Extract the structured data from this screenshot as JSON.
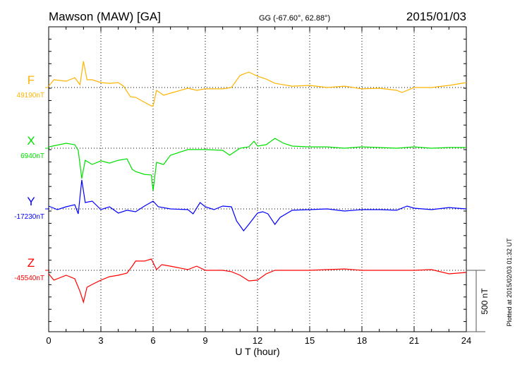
{
  "chart_data": {
    "type": "line",
    "title": "Mawson (MAW)  [GA]",
    "subtitle": "GG (-67.60°,  62.88°)",
    "date": "2015/01/03",
    "xlabel": "U T (hour)",
    "xlim": [
      0,
      24
    ],
    "x_ticks": [
      "0",
      "3",
      "6",
      "9",
      "12",
      "15",
      "18",
      "21",
      "24"
    ],
    "scale_bar_label": "500 nT",
    "scale_bar_nT": 500,
    "footer": "Plotted at 2015/02/03 01:32 UT",
    "grid": true,
    "series": [
      {
        "name": "F",
        "baseline_label": "49190nT",
        "color": "#ffb400",
        "x": [
          0,
          0.3,
          1,
          1.5,
          1.8,
          2.0,
          2.2,
          2.5,
          3,
          3.5,
          4,
          4.3,
          4.7,
          5,
          5.5,
          5.9,
          6.0,
          6.2,
          6.6,
          7,
          8,
          8.5,
          9,
          10,
          10.5,
          11,
          11.5,
          12,
          12.5,
          13,
          14,
          15,
          16,
          17,
          18,
          19,
          20,
          20.3,
          21,
          22,
          23,
          24
        ],
        "y": [
          11,
          63,
          52,
          80,
          23,
          213,
          63,
          63,
          40,
          34,
          40,
          11,
          -75,
          -80,
          -120,
          -150,
          -150,
          -23,
          -63,
          -46,
          -6,
          -23,
          -11,
          -11,
          0,
          98,
          126,
          92,
          69,
          34,
          11,
          17,
          0,
          11,
          -11,
          -6,
          -23,
          -40,
          0,
          0,
          17,
          40
        ]
      },
      {
        "name": "X",
        "baseline_label": "6940nT",
        "color": "#00e000",
        "x": [
          0,
          1,
          1.5,
          1.7,
          1.9,
          2.1,
          2.5,
          3,
          3.5,
          4,
          4.5,
          4.8,
          5,
          5.5,
          5.9,
          6.0,
          6.2,
          6.6,
          7,
          8,
          9,
          10,
          10.4,
          11,
          11.5,
          11.8,
          12,
          12.5,
          13,
          13.5,
          14,
          15,
          16,
          17,
          18,
          19,
          20,
          21,
          22,
          23,
          24
        ],
        "y": [
          11,
          40,
          29,
          -17,
          -247,
          -98,
          -132,
          -103,
          -121,
          -98,
          -86,
          -172,
          -190,
          -213,
          -218,
          -345,
          -115,
          -132,
          -57,
          -11,
          -11,
          -17,
          -57,
          0,
          11,
          57,
          17,
          29,
          80,
          40,
          17,
          11,
          11,
          0,
          11,
          6,
          0,
          11,
          0,
          6,
          6
        ]
      },
      {
        "name": "Y",
        "baseline_label": "-17230nT",
        "color": "#0000ff",
        "x": [
          0,
          0.5,
          1,
          1.5,
          1.7,
          1.9,
          2.1,
          2.5,
          3,
          3.5,
          4,
          4.5,
          5,
          5.5,
          6,
          6.3,
          7,
          8,
          8.3,
          8.7,
          9,
          9.5,
          10,
          10.5,
          10.8,
          11.2,
          11.5,
          12,
          12.3,
          12.6,
          13,
          13.3,
          14,
          15,
          16,
          17,
          18,
          19,
          20,
          20.6,
          21,
          22,
          23,
          24
        ],
        "y": [
          23,
          -6,
          17,
          34,
          -40,
          236,
          52,
          63,
          -6,
          17,
          -34,
          -11,
          -23,
          23,
          63,
          17,
          0,
          -6,
          -40,
          52,
          17,
          -6,
          23,
          17,
          -98,
          -178,
          -126,
          -34,
          -23,
          -40,
          -126,
          -69,
          -11,
          -6,
          0,
          -17,
          -6,
          -6,
          -11,
          23,
          6,
          -6,
          11,
          0
        ]
      },
      {
        "name": "Z",
        "baseline_label": "-45540nT",
        "color": "#ff0000",
        "x": [
          0,
          0.3,
          1,
          1.5,
          1.8,
          2.0,
          2.2,
          2.5,
          3,
          3.5,
          4,
          4.5,
          4.8,
          5,
          5.5,
          5.9,
          6.2,
          6.5,
          7,
          8,
          8.5,
          9,
          10,
          10.5,
          11,
          11.5,
          12,
          12.5,
          13,
          14,
          15,
          16,
          17,
          18,
          19,
          20,
          21,
          22,
          23,
          24
        ],
        "y": [
          -29,
          -80,
          -40,
          -69,
          -172,
          -259,
          -138,
          -115,
          -80,
          -52,
          -40,
          -23,
          34,
          75,
          75,
          92,
          6,
          46,
          34,
          6,
          34,
          0,
          0,
          -11,
          -40,
          -86,
          -80,
          -29,
          0,
          0,
          0,
          6,
          11,
          0,
          0,
          0,
          0,
          6,
          -29,
          -17
        ]
      }
    ]
  }
}
